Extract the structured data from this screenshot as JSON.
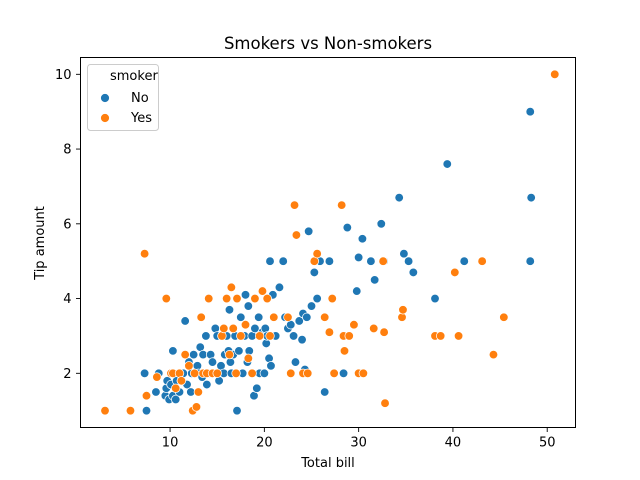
{
  "chart_data": {
    "type": "scatter",
    "title": "Smokers vs Non-smokers",
    "xlabel": "Total bill",
    "ylabel": "Tip amount",
    "xlim": [
      0.5,
      53.0
    ],
    "ylim": [
      0.55,
      10.45
    ],
    "xticks": [
      10,
      20,
      30,
      40,
      50
    ],
    "yticks": [
      2,
      4,
      6,
      8,
      10
    ],
    "grid": false,
    "legend": {
      "title": "smoker",
      "placement": "top-left",
      "entries": [
        "No",
        "Yes"
      ]
    },
    "series": [
      {
        "name": "No",
        "color": "#1f77b4",
        "points": [
          [
            7.3,
            2.0
          ],
          [
            7.5,
            1.0
          ],
          [
            8.5,
            1.5
          ],
          [
            8.8,
            2.0
          ],
          [
            9.5,
            1.4
          ],
          [
            9.6,
            1.6
          ],
          [
            9.7,
            1.8
          ],
          [
            9.9,
            1.3
          ],
          [
            10.1,
            1.7
          ],
          [
            10.3,
            2.6
          ],
          [
            10.3,
            1.4
          ],
          [
            10.6,
            1.3
          ],
          [
            10.7,
            1.8
          ],
          [
            11.0,
            1.5
          ],
          [
            11.2,
            1.8
          ],
          [
            11.4,
            2.0
          ],
          [
            11.6,
            3.4
          ],
          [
            11.8,
            1.7
          ],
          [
            12.0,
            2.3
          ],
          [
            12.2,
            1.5
          ],
          [
            12.3,
            2.0
          ],
          [
            12.5,
            2.5
          ],
          [
            12.7,
            2.0
          ],
          [
            12.9,
            2.2
          ],
          [
            13.0,
            2.0
          ],
          [
            13.2,
            2.7
          ],
          [
            13.4,
            1.9
          ],
          [
            13.5,
            2.5
          ],
          [
            13.8,
            3.0
          ],
          [
            13.9,
            1.7
          ],
          [
            14.1,
            2.0
          ],
          [
            14.3,
            2.5
          ],
          [
            14.5,
            2.3
          ],
          [
            14.8,
            3.2
          ],
          [
            14.9,
            2.0
          ],
          [
            15.0,
            3.0
          ],
          [
            15.2,
            1.8
          ],
          [
            15.4,
            2.2
          ],
          [
            15.5,
            3.0
          ],
          [
            15.7,
            2.0
          ],
          [
            15.8,
            2.5
          ],
          [
            16.0,
            3.0
          ],
          [
            16.2,
            2.6
          ],
          [
            16.3,
            3.7
          ],
          [
            16.4,
            2.3
          ],
          [
            16.5,
            2.0
          ],
          [
            16.7,
            2.5
          ],
          [
            16.9,
            3.0
          ],
          [
            17.1,
            1.0
          ],
          [
            17.3,
            2.6
          ],
          [
            17.5,
            3.5
          ],
          [
            17.7,
            2.0
          ],
          [
            17.9,
            3.0
          ],
          [
            18.0,
            4.1
          ],
          [
            18.2,
            2.3
          ],
          [
            18.3,
            3.8
          ],
          [
            18.4,
            2.6
          ],
          [
            18.7,
            3.0
          ],
          [
            18.9,
            1.4
          ],
          [
            19.0,
            3.2
          ],
          [
            19.2,
            1.6
          ],
          [
            19.4,
            3.5
          ],
          [
            19.5,
            2.0
          ],
          [
            19.8,
            3.1
          ],
          [
            20.0,
            2.0
          ],
          [
            20.1,
            3.2
          ],
          [
            20.2,
            2.8
          ],
          [
            20.3,
            3.0
          ],
          [
            20.5,
            2.4
          ],
          [
            20.6,
            5.0
          ],
          [
            20.7,
            2.2
          ],
          [
            20.9,
            4.1
          ],
          [
            21.0,
            3.5
          ],
          [
            21.2,
            3.0
          ],
          [
            21.6,
            4.3
          ],
          [
            22.0,
            5.0
          ],
          [
            22.2,
            3.5
          ],
          [
            22.5,
            3.2
          ],
          [
            22.8,
            3.3
          ],
          [
            23.1,
            3.0
          ],
          [
            23.3,
            2.3
          ],
          [
            23.7,
            3.4
          ],
          [
            24.0,
            2.9
          ],
          [
            24.1,
            3.6
          ],
          [
            24.3,
            2.1
          ],
          [
            24.5,
            3.5
          ],
          [
            24.7,
            5.8
          ],
          [
            25.0,
            3.8
          ],
          [
            25.3,
            4.7
          ],
          [
            25.6,
            4.0
          ],
          [
            25.9,
            5.0
          ],
          [
            26.4,
            1.5
          ],
          [
            26.9,
            5.0
          ],
          [
            27.2,
            4.0
          ],
          [
            28.4,
            2.0
          ],
          [
            28.8,
            5.9
          ],
          [
            29.8,
            4.2
          ],
          [
            30.0,
            5.1
          ],
          [
            30.4,
            5.6
          ],
          [
            31.3,
            5.0
          ],
          [
            31.7,
            4.5
          ],
          [
            32.4,
            6.0
          ],
          [
            32.7,
            5.0
          ],
          [
            34.3,
            6.7
          ],
          [
            34.8,
            5.2
          ],
          [
            35.3,
            5.0
          ],
          [
            35.8,
            4.7
          ],
          [
            38.1,
            4.0
          ],
          [
            39.4,
            7.6
          ],
          [
            41.2,
            5.0
          ],
          [
            48.2,
            9.0
          ],
          [
            48.3,
            6.7
          ],
          [
            48.2,
            5.0
          ]
        ]
      },
      {
        "name": "Yes",
        "color": "#ff7f0e",
        "points": [
          [
            3.1,
            1.0
          ],
          [
            5.8,
            1.0
          ],
          [
            7.3,
            5.2
          ],
          [
            7.5,
            1.4
          ],
          [
            8.6,
            1.9
          ],
          [
            9.6,
            4.0
          ],
          [
            10.1,
            2.0
          ],
          [
            10.3,
            2.0
          ],
          [
            10.6,
            1.6
          ],
          [
            11.0,
            2.0
          ],
          [
            11.2,
            1.8
          ],
          [
            11.6,
            2.5
          ],
          [
            12.0,
            2.2
          ],
          [
            12.4,
            1.0
          ],
          [
            12.6,
            2.0
          ],
          [
            12.8,
            1.1
          ],
          [
            13.0,
            1.5
          ],
          [
            13.3,
            3.5
          ],
          [
            13.5,
            2.0
          ],
          [
            13.9,
            2.0
          ],
          [
            14.1,
            4.0
          ],
          [
            14.5,
            2.0
          ],
          [
            15.0,
            2.0
          ],
          [
            15.5,
            3.0
          ],
          [
            15.7,
            3.2
          ],
          [
            16.0,
            4.0
          ],
          [
            16.3,
            2.5
          ],
          [
            16.5,
            4.3
          ],
          [
            16.7,
            3.2
          ],
          [
            17.0,
            2.0
          ],
          [
            17.1,
            4.0
          ],
          [
            17.5,
            3.0
          ],
          [
            18.0,
            3.3
          ],
          [
            18.3,
            2.4
          ],
          [
            18.7,
            2.0
          ],
          [
            19.0,
            4.0
          ],
          [
            19.5,
            3.0
          ],
          [
            19.8,
            4.2
          ],
          [
            20.3,
            4.0
          ],
          [
            20.6,
            3.0
          ],
          [
            21.0,
            3.5
          ],
          [
            22.5,
            3.5
          ],
          [
            22.8,
            2.0
          ],
          [
            23.2,
            6.5
          ],
          [
            23.4,
            5.7
          ],
          [
            24.1,
            2.0
          ],
          [
            24.6,
            2.0
          ],
          [
            25.3,
            5.0
          ],
          [
            25.6,
            5.2
          ],
          [
            26.4,
            3.5
          ],
          [
            26.9,
            3.1
          ],
          [
            27.2,
            4.0
          ],
          [
            27.4,
            2.0
          ],
          [
            28.2,
            6.5
          ],
          [
            28.4,
            3.0
          ],
          [
            28.5,
            2.6
          ],
          [
            29.0,
            3.0
          ],
          [
            29.5,
            3.3
          ],
          [
            30.0,
            2.0
          ],
          [
            30.5,
            2.0
          ],
          [
            31.6,
            3.2
          ],
          [
            32.6,
            5.0
          ],
          [
            32.7,
            3.1
          ],
          [
            32.8,
            1.2
          ],
          [
            34.6,
            3.5
          ],
          [
            34.7,
            3.7
          ],
          [
            38.1,
            3.0
          ],
          [
            38.7,
            3.0
          ],
          [
            40.2,
            4.7
          ],
          [
            40.6,
            3.0
          ],
          [
            43.1,
            5.0
          ],
          [
            44.3,
            2.5
          ],
          [
            45.4,
            3.5
          ],
          [
            50.8,
            10.0
          ]
        ]
      }
    ]
  }
}
